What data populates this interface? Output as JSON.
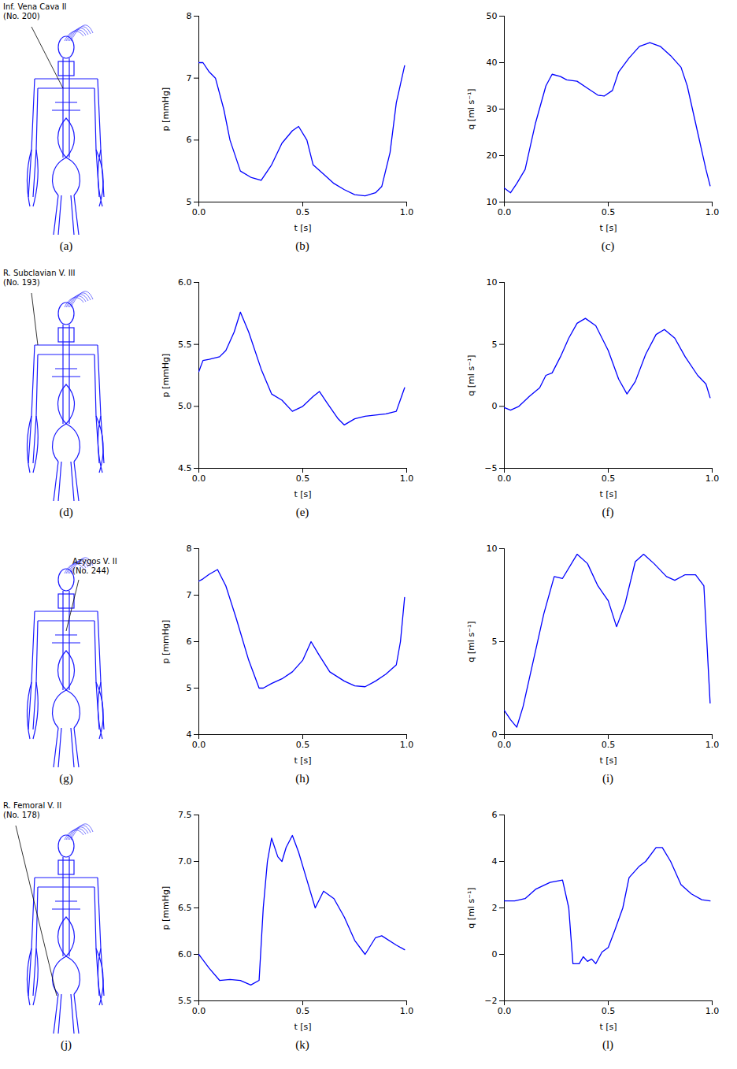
{
  "chart_data": [
    {
      "type": "line",
      "caption": "(b)",
      "color": "#0000ff",
      "xlabel": "t [s]",
      "ylabel": "p [mmHg]",
      "x": [
        0,
        0.02,
        0.05,
        0.08,
        0.12,
        0.15,
        0.2,
        0.25,
        0.3,
        0.35,
        0.4,
        0.45,
        0.48,
        0.52,
        0.55,
        0.6,
        0.65,
        0.7,
        0.75,
        0.8,
        0.85,
        0.88,
        0.92,
        0.95,
        0.99
      ],
      "values": [
        7.25,
        7.25,
        7.1,
        7.0,
        6.5,
        6.0,
        5.5,
        5.4,
        5.35,
        5.6,
        5.95,
        6.15,
        6.22,
        6.0,
        5.6,
        5.45,
        5.3,
        5.2,
        5.12,
        5.1,
        5.15,
        5.25,
        5.8,
        6.6,
        7.2
      ],
      "xlim": [
        0,
        1
      ],
      "ylim": [
        5,
        8
      ],
      "xticks": [
        {
          "value": 0,
          "label": "0.0"
        },
        0.5,
        {
          "value": 1,
          "label": "1.0"
        }
      ],
      "yticks": [
        5,
        6,
        7,
        8
      ]
    },
    {
      "type": "line",
      "caption": "(c)",
      "color": "#0000ff",
      "xlabel": "t [s]",
      "ylabel": "q [ml s⁻¹]",
      "x": [
        0,
        0.03,
        0.06,
        0.1,
        0.15,
        0.2,
        0.23,
        0.27,
        0.3,
        0.35,
        0.4,
        0.45,
        0.48,
        0.52,
        0.55,
        0.6,
        0.65,
        0.7,
        0.75,
        0.8,
        0.85,
        0.88,
        0.93,
        0.97,
        0.99
      ],
      "values": [
        13,
        12,
        14,
        17,
        27,
        35,
        37.5,
        37,
        36.3,
        36,
        34.5,
        33,
        32.8,
        34,
        38,
        41,
        43.5,
        44.3,
        43.5,
        41.5,
        39,
        35,
        25,
        17,
        13.5
      ],
      "xlim": [
        0,
        1
      ],
      "ylim": [
        10,
        50
      ],
      "xticks": [
        {
          "value": 0,
          "label": "0.0"
        },
        0.5,
        {
          "value": 1,
          "label": "1.0"
        }
      ],
      "yticks": [
        10,
        20,
        30,
        40,
        50
      ]
    },
    {
      "type": "line",
      "caption": "(e)",
      "color": "#0000ff",
      "xlabel": "t [s]",
      "ylabel": "p [mmHg]",
      "x": [
        0,
        0.02,
        0.05,
        0.1,
        0.13,
        0.17,
        0.2,
        0.24,
        0.3,
        0.35,
        0.4,
        0.45,
        0.5,
        0.55,
        0.58,
        0.62,
        0.67,
        0.7,
        0.75,
        0.8,
        0.85,
        0.9,
        0.95,
        0.99
      ],
      "values": [
        5.28,
        5.37,
        5.38,
        5.4,
        5.45,
        5.6,
        5.76,
        5.6,
        5.3,
        5.1,
        5.05,
        4.96,
        5.0,
        5.08,
        5.12,
        5.02,
        4.9,
        4.85,
        4.9,
        4.92,
        4.93,
        4.94,
        4.96,
        5.15
      ],
      "xlim": [
        0,
        1
      ],
      "ylim": [
        4.5,
        6
      ],
      "xticks": [
        {
          "value": 0,
          "label": "0.0"
        },
        0.5,
        {
          "value": 1,
          "label": "1.0"
        }
      ],
      "yticks": [
        4.5,
        {
          "value": 5,
          "label": "5.0"
        },
        5.5,
        {
          "value": 6,
          "label": "6.0"
        }
      ]
    },
    {
      "type": "line",
      "caption": "(f)",
      "color": "#0000ff",
      "xlabel": "t [s]",
      "ylabel": "q [ml s⁻¹]",
      "x": [
        0,
        0.03,
        0.07,
        0.12,
        0.17,
        0.2,
        0.23,
        0.27,
        0.31,
        0.35,
        0.39,
        0.44,
        0.5,
        0.55,
        0.59,
        0.63,
        0.68,
        0.73,
        0.77,
        0.82,
        0.87,
        0.93,
        0.97,
        0.99
      ],
      "values": [
        -0.1,
        -0.3,
        0,
        0.8,
        1.5,
        2.5,
        2.7,
        4,
        5.5,
        6.7,
        7.1,
        6.5,
        4.5,
        2.2,
        1.0,
        2.0,
        4.2,
        5.8,
        6.2,
        5.5,
        4.0,
        2.5,
        1.8,
        0.7
      ],
      "xlim": [
        0,
        1
      ],
      "ylim": [
        -5,
        10
      ],
      "xticks": [
        {
          "value": 0,
          "label": "0.0"
        },
        0.5,
        {
          "value": 1,
          "label": "1.0"
        }
      ],
      "yticks": [
        -5,
        0,
        5,
        10
      ]
    },
    {
      "type": "line",
      "caption": "(h)",
      "color": "#0000ff",
      "xlabel": "t [s]",
      "ylabel": "p [mmHg]",
      "x": [
        0,
        0.02,
        0.05,
        0.09,
        0.13,
        0.18,
        0.24,
        0.29,
        0.31,
        0.35,
        0.4,
        0.45,
        0.5,
        0.54,
        0.58,
        0.63,
        0.7,
        0.75,
        0.8,
        0.85,
        0.9,
        0.95,
        0.97,
        0.99
      ],
      "values": [
        7.3,
        7.35,
        7.45,
        7.55,
        7.2,
        6.5,
        5.6,
        5.0,
        5.0,
        5.1,
        5.2,
        5.35,
        5.6,
        6.0,
        5.7,
        5.35,
        5.15,
        5.05,
        5.03,
        5.15,
        5.3,
        5.5,
        6.0,
        6.95
      ],
      "xlim": [
        0,
        1
      ],
      "ylim": [
        4,
        8
      ],
      "xticks": [
        {
          "value": 0,
          "label": "0.0"
        },
        0.5,
        {
          "value": 1,
          "label": "1.0"
        }
      ],
      "yticks": [
        4,
        5,
        6,
        7,
        8
      ]
    },
    {
      "type": "line",
      "caption": "(i)",
      "color": "#0000ff",
      "xlabel": "t [s]",
      "ylabel": "q [ml s⁻¹]",
      "x": [
        0,
        0.03,
        0.06,
        0.09,
        0.14,
        0.19,
        0.24,
        0.28,
        0.35,
        0.4,
        0.45,
        0.5,
        0.54,
        0.58,
        0.63,
        0.67,
        0.72,
        0.78,
        0.82,
        0.87,
        0.92,
        0.96,
        0.99
      ],
      "values": [
        1.3,
        0.8,
        0.4,
        1.5,
        4,
        6.5,
        8.5,
        8.4,
        9.7,
        9.2,
        8.0,
        7.2,
        5.8,
        7.0,
        9.3,
        9.7,
        9.2,
        8.5,
        8.3,
        8.6,
        8.6,
        8.0,
        1.7
      ],
      "xlim": [
        0,
        1
      ],
      "ylim": [
        0,
        10
      ],
      "xticks": [
        {
          "value": 0,
          "label": "0.0"
        },
        0.5,
        {
          "value": 1,
          "label": "1.0"
        }
      ],
      "yticks": [
        0,
        5,
        10
      ]
    },
    {
      "type": "line",
      "caption": "(k)",
      "color": "#0000ff",
      "xlabel": "t [s]",
      "ylabel": "p [mmHg]",
      "x": [
        0,
        0.05,
        0.1,
        0.15,
        0.2,
        0.25,
        0.29,
        0.31,
        0.33,
        0.35,
        0.38,
        0.4,
        0.42,
        0.45,
        0.48,
        0.52,
        0.56,
        0.6,
        0.65,
        0.7,
        0.75,
        0.8,
        0.85,
        0.88,
        0.95,
        0.99
      ],
      "values": [
        6.0,
        5.85,
        5.72,
        5.73,
        5.72,
        5.67,
        5.72,
        6.5,
        7.0,
        7.25,
        7.05,
        7.0,
        7.15,
        7.28,
        7.1,
        6.8,
        6.5,
        6.68,
        6.6,
        6.4,
        6.15,
        6.0,
        6.18,
        6.2,
        6.1,
        6.05
      ],
      "xlim": [
        0,
        1
      ],
      "ylim": [
        5.5,
        7.5
      ],
      "xticks": [
        {
          "value": 0,
          "label": "0.0"
        },
        0.5,
        {
          "value": 1,
          "label": "1.0"
        }
      ],
      "yticks": [
        5.5,
        {
          "value": 6,
          "label": "6.0"
        },
        6.5,
        {
          "value": 7,
          "label": "7.0"
        },
        7.5
      ]
    },
    {
      "type": "line",
      "caption": "(l)",
      "color": "#0000ff",
      "xlabel": "t [s]",
      "ylabel": "q [ml s⁻¹]",
      "x": [
        0,
        0.05,
        0.1,
        0.15,
        0.22,
        0.28,
        0.31,
        0.33,
        0.36,
        0.38,
        0.4,
        0.42,
        0.44,
        0.47,
        0.5,
        0.53,
        0.57,
        0.6,
        0.65,
        0.68,
        0.73,
        0.76,
        0.8,
        0.85,
        0.9,
        0.95,
        0.99
      ],
      "values": [
        2.3,
        2.3,
        2.4,
        2.8,
        3.1,
        3.2,
        2.0,
        -0.4,
        -0.4,
        -0.1,
        -0.3,
        -0.2,
        -0.4,
        0.1,
        0.3,
        1.0,
        2.0,
        3.3,
        3.8,
        4.0,
        4.6,
        4.6,
        4.0,
        3.0,
        2.6,
        2.35,
        2.3
      ],
      "xlim": [
        0,
        1
      ],
      "ylim": [
        -2,
        6
      ],
      "xticks": [
        {
          "value": 0,
          "label": "0.0"
        },
        0.5,
        {
          "value": 1,
          "label": "1.0"
        }
      ],
      "yticks": [
        -2,
        0,
        2,
        4,
        6
      ]
    }
  ],
  "diagrams": [
    {
      "caption": "(a)",
      "label": [
        "Inf. Vena Cava II",
        "(No. 200)"
      ]
    },
    {
      "caption": "(d)",
      "label": [
        "R. Subclavian V. III",
        "(No. 193)"
      ]
    },
    {
      "caption": "(g)",
      "label": [
        "Azygos V. II",
        "(No. 244)"
      ]
    },
    {
      "caption": "(j)",
      "label": [
        "R. Femoral V. II",
        "(No. 178)"
      ]
    }
  ]
}
